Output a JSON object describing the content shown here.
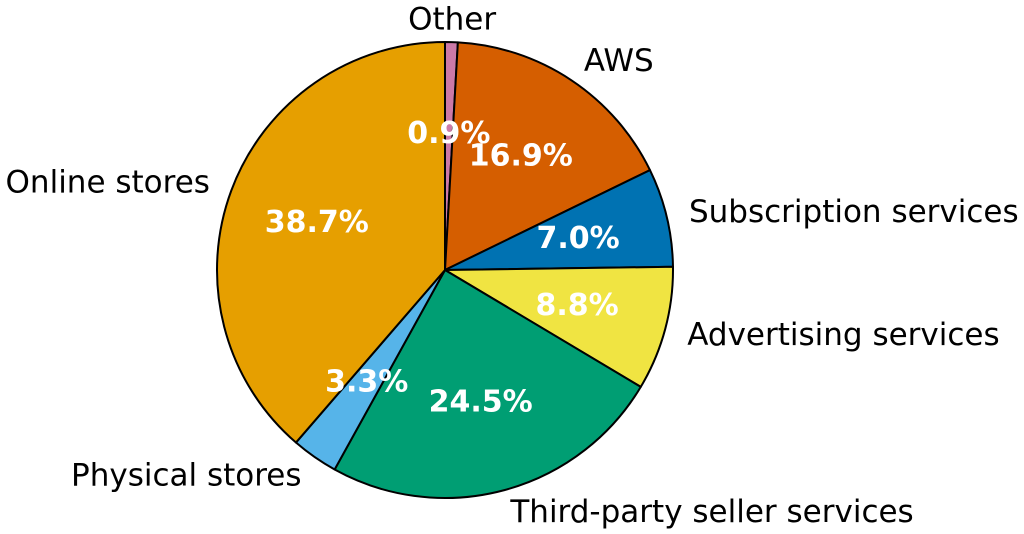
{
  "chart_data": {
    "type": "pie",
    "title": "",
    "start_angle_deg": 90,
    "direction": "clockwise",
    "slices": [
      {
        "label": "Other",
        "value": 0.9,
        "pct_text": "0.9%",
        "color": "#cc79a7"
      },
      {
        "label": "AWS",
        "value": 16.9,
        "pct_text": "16.9%",
        "color": "#d55e00"
      },
      {
        "label": "Subscription services",
        "value": 7.0,
        "pct_text": "7.0%",
        "color": "#0072b2"
      },
      {
        "label": "Advertising services",
        "value": 8.8,
        "pct_text": "8.8%",
        "color": "#f0e442"
      },
      {
        "label": "Third-party seller services",
        "value": 24.5,
        "pct_text": "24.5%",
        "color": "#009e73"
      },
      {
        "label": "Physical stores",
        "value": 3.3,
        "pct_text": "3.3%",
        "color": "#56b4e9"
      },
      {
        "label": "Online stores",
        "value": 38.7,
        "pct_text": "38.7%",
        "color": "#e69f00"
      }
    ]
  }
}
